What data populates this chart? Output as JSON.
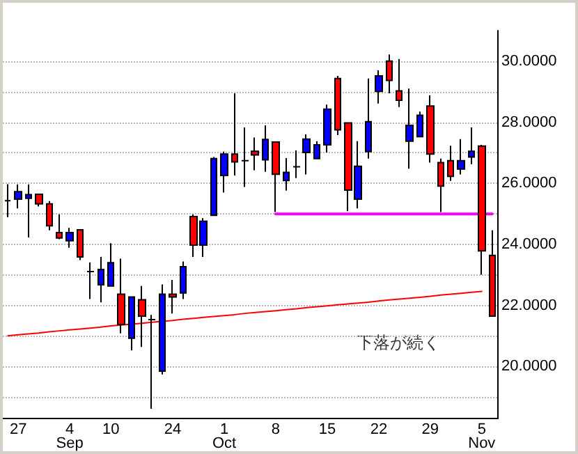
{
  "chart_data": {
    "type": "candlestick",
    "categories": [
      null,
      "27",
      null,
      null,
      null,
      null,
      "4 Sep",
      null,
      null,
      null,
      "10",
      null,
      null,
      null,
      null,
      null,
      "24",
      null,
      null,
      null,
      null,
      "1 Oct",
      null,
      null,
      null,
      null,
      "8",
      null,
      null,
      null,
      null,
      "15",
      null,
      null,
      null,
      null,
      "22",
      null,
      null,
      null,
      null,
      "29",
      null,
      null,
      null,
      null,
      "5 Nov",
      null
    ],
    "ohlc": [
      [
        25.43,
        25.97,
        24.89,
        25.43
      ],
      [
        25.48,
        25.96,
        25.18,
        25.73
      ],
      [
        25.51,
        25.96,
        24.23,
        25.63
      ],
      [
        25.64,
        25.64,
        25.24,
        25.33
      ],
      [
        25.33,
        25.42,
        24.46,
        24.61
      ],
      [
        24.39,
        24.98,
        24.17,
        24.21
      ],
      [
        24.12,
        24.54,
        23.89,
        24.39
      ],
      [
        24.48,
        24.48,
        23.49,
        23.59
      ],
      [
        23.11,
        23.41,
        22.21,
        23.11
      ],
      [
        22.68,
        23.59,
        22.1,
        23.18
      ],
      [
        22.64,
        24.04,
        22.64,
        23.4
      ],
      [
        22.37,
        23.53,
        21.09,
        21.38
      ],
      [
        20.93,
        22.28,
        20.53,
        22.28
      ],
      [
        22.19,
        22.64,
        20.64,
        21.65
      ],
      [
        21.54,
        21.69,
        18.62,
        21.54
      ],
      [
        19.85,
        22.69,
        19.74,
        22.37
      ],
      [
        22.37,
        22.84,
        21.74,
        22.28
      ],
      [
        22.41,
        23.44,
        22.21,
        23.27
      ],
      [
        24.91,
        24.98,
        23.59,
        23.98
      ],
      [
        23.98,
        24.86,
        23.59,
        24.76
      ],
      [
        24.95,
        26.86,
        24.95,
        26.81
      ],
      [
        26.26,
        27.04,
        25.7,
        26.96
      ],
      [
        26.96,
        28.95,
        26.26,
        26.7
      ],
      [
        26.74,
        27.83,
        25.88,
        26.74
      ],
      [
        27.05,
        27.5,
        26.43,
        26.93
      ],
      [
        26.77,
        27.9,
        26.38,
        27.44
      ],
      [
        27.35,
        27.35,
        25.06,
        26.3
      ],
      [
        26.09,
        26.83,
        25.76,
        26.36
      ],
      [
        26.54,
        27.08,
        26.17,
        26.54
      ],
      [
        27.01,
        27.6,
        26.29,
        27.45
      ],
      [
        26.81,
        27.38,
        26.81,
        27.26
      ],
      [
        27.26,
        28.58,
        27.01,
        28.43
      ],
      [
        29.43,
        29.52,
        27.58,
        27.75
      ],
      [
        27.98,
        27.98,
        25.09,
        25.78
      ],
      [
        25.48,
        27.38,
        25.18,
        26.56
      ],
      [
        27.04,
        29.43,
        26.81,
        28.02
      ],
      [
        29.01,
        29.7,
        28.61,
        29.52
      ],
      [
        30.0,
        30.22,
        28.95,
        29.37
      ],
      [
        29.03,
        30.07,
        28.5,
        28.72
      ],
      [
        27.38,
        29.1,
        26.48,
        27.9
      ],
      [
        27.53,
        28.35,
        27.53,
        28.23
      ],
      [
        28.53,
        28.88,
        26.68,
        26.96
      ],
      [
        26.68,
        26.81,
        25.06,
        25.91
      ],
      [
        26.74,
        27.23,
        26.08,
        26.23
      ],
      [
        26.47,
        27.45,
        26.29,
        26.74
      ],
      [
        26.86,
        27.83,
        26.63,
        27.05
      ],
      [
        27.22,
        27.26,
        23.01,
        23.79
      ],
      [
        23.64,
        24.46,
        21.65,
        21.65
      ]
    ],
    "colors": [
      "#000000",
      "#0000ff",
      "#0000ff",
      "#ff0000",
      "#ff0000",
      "#ff0000",
      "#0000ff",
      "#ff0000",
      "#000000",
      "#0000ff",
      "#0000ff",
      "#ff0000",
      "#0000ff",
      "#ff0000",
      "#000000",
      "#0000ff",
      "#ff0000",
      "#0000ff",
      "#ff0000",
      "#0000ff",
      "#0000ff",
      "#0000ff",
      "#ff0000",
      "#000000",
      "#ff0000",
      "#0000ff",
      "#ff0000",
      "#0000ff",
      "#000000",
      "#0000ff",
      "#0000ff",
      "#0000ff",
      "#ff0000",
      "#ff0000",
      "#0000ff",
      "#0000ff",
      "#0000ff",
      "#ff0000",
      "#ff0000",
      "#0000ff",
      "#0000ff",
      "#ff0000",
      "#ff0000",
      "#ff0000",
      "#0000ff",
      "#0000ff",
      "#ff0000",
      "#ff0000"
    ],
    "series": [
      {
        "type": "line",
        "color": "#ff0000",
        "values": [
          21.01,
          21.04,
          21.07,
          21.1,
          21.14,
          21.17,
          21.2,
          21.23,
          21.26,
          21.29,
          21.33,
          21.36,
          21.39,
          21.42,
          21.45,
          21.48,
          21.51,
          21.55,
          21.58,
          21.61,
          21.64,
          21.67,
          21.7,
          21.74,
          21.77,
          21.8,
          21.83,
          21.86,
          21.89,
          21.93,
          21.96,
          21.99,
          22.02,
          22.05,
          22.08,
          22.11,
          22.15,
          22.18,
          22.21,
          22.24,
          22.27,
          22.3,
          22.34,
          22.37,
          22.4,
          22.43,
          22.46,
          null
        ]
      },
      {
        "type": "line",
        "color": "#ff00ff",
        "values": [
          null,
          null,
          null,
          null,
          null,
          null,
          null,
          null,
          null,
          null,
          null,
          null,
          null,
          null,
          null,
          null,
          null,
          null,
          null,
          null,
          null,
          null,
          null,
          null,
          null,
          null,
          25,
          25,
          25,
          25,
          25,
          25,
          25,
          25,
          25,
          25,
          25,
          25,
          25,
          25,
          25,
          25,
          25,
          25,
          25,
          25,
          25,
          25
        ]
      }
    ],
    "ylim": [
      18.3,
      31.0
    ],
    "yticks": [
      {
        "value": 19,
        "label": null
      },
      {
        "value": 20,
        "label": "20.0000"
      },
      {
        "value": 21,
        "label": null
      },
      {
        "value": 22,
        "label": "22.0000"
      },
      {
        "value": 23,
        "label": null
      },
      {
        "value": 24,
        "label": "24.0000"
      },
      {
        "value": 25,
        "label": null
      },
      {
        "value": 26,
        "label": "26.0000"
      },
      {
        "value": 27,
        "label": null
      },
      {
        "value": 28,
        "label": "28.0000"
      },
      {
        "value": 29,
        "label": null
      },
      {
        "value": 30,
        "label": "30.0000"
      }
    ],
    "annotations": [
      "下落が続く"
    ],
    "grid": "y",
    "marker": "none",
    "line_style": "solid"
  }
}
